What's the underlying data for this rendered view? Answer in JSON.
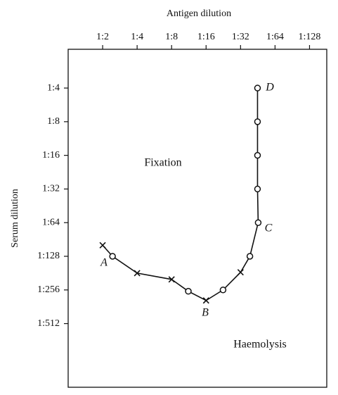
{
  "chart_data": {
    "type": "line",
    "x_label": "Antigen dilution",
    "y_label": "Serum dilution",
    "x": [
      2,
      2.44,
      4,
      8,
      11.2,
      16,
      22.5,
      32,
      38.6,
      45.6,
      45,
      45,
      45,
      45
    ],
    "series": [
      {
        "color": "#111111",
        "values": [
          102,
          128,
          181,
          206,
          263,
          318,
          256,
          178,
          128,
          64,
          32,
          16,
          8,
          4
        ],
        "markers": [
          "x",
          "o",
          "x",
          "x",
          "o",
          "x",
          "o",
          "x",
          "o",
          "o",
          "o",
          "o",
          "o",
          "o"
        ]
      }
    ],
    "xscale": "log",
    "yscale": "log",
    "y_inverted": true,
    "xlim": [
      1,
      181
    ],
    "xticks": [
      {
        "value": 2,
        "label": "1:2"
      },
      {
        "value": 4,
        "label": "1:4"
      },
      {
        "value": 8,
        "label": "1:8"
      },
      {
        "value": 16,
        "label": "1:16"
      },
      {
        "value": 32,
        "label": "1:32"
      },
      {
        "value": 64,
        "label": "1:64"
      },
      {
        "value": 128,
        "label": "1:128"
      }
    ],
    "ylim": [
      1.8,
      1900
    ],
    "yticks": [
      {
        "value": 4,
        "label": "1:4"
      },
      {
        "value": 8,
        "label": "1:8"
      },
      {
        "value": 16,
        "label": "1:16"
      },
      {
        "value": 32,
        "label": "1:32"
      },
      {
        "value": 64,
        "label": "1:64"
      },
      {
        "value": 128,
        "label": "1:128"
      },
      {
        "value": 256,
        "label": "1:256"
      },
      {
        "value": 512,
        "label": "1:512"
      }
    ],
    "annotations": [
      "A",
      "B",
      "C",
      "D",
      "Fixation",
      "Haemolysis"
    ]
  }
}
